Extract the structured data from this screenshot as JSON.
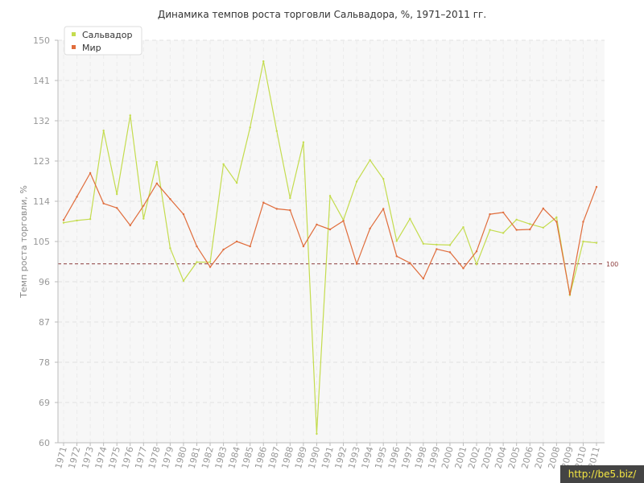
{
  "chart_data": {
    "type": "line",
    "title": "Динамика темпов роста торговли Сальвадора, %, 1971–2011 гг.",
    "xlabel": "",
    "ylabel": "Темп роста торговли, %",
    "ylim": [
      60,
      150
    ],
    "yticks": [
      60,
      69,
      78,
      87,
      96,
      105,
      114,
      123,
      132,
      141,
      150
    ],
    "grid": true,
    "legend_position": "top-left",
    "categories": [
      "1971",
      "1972",
      "1973",
      "1974",
      "1975",
      "1976",
      "1977",
      "1978",
      "1979",
      "1980",
      "1981",
      "1982",
      "1983",
      "1984",
      "1985",
      "1986",
      "1987",
      "1988",
      "1989",
      "1990",
      "1991",
      "1992",
      "1993",
      "1994",
      "1995",
      "1996",
      "1997",
      "1998",
      "1999",
      "2000",
      "2001",
      "2002",
      "2003",
      "2004",
      "2005",
      "2006",
      "2007",
      "2008",
      "2009",
      "2010",
      "2011"
    ],
    "series": [
      {
        "name": "Сальвадор",
        "color": "#c4dc4e",
        "values": [
          109.2,
          109.7,
          110.0,
          129.8,
          115.6,
          133.2,
          110.1,
          122.8,
          103.5,
          96.2,
          100.4,
          100.4,
          122.3,
          118.1,
          130.5,
          145.3,
          129.7,
          114.7,
          127.2,
          62.0,
          115.2,
          109.8,
          118.4,
          123.2,
          119.0,
          105.1,
          110.1,
          104.5,
          104.3,
          104.2,
          108.2,
          99.9,
          107.6,
          106.9,
          109.9,
          108.9,
          108.1,
          110.4,
          93.0,
          105.0,
          104.7
        ]
      },
      {
        "name": "Мир",
        "color": "#e06d3c",
        "values": [
          109.8,
          115.0,
          120.3,
          113.5,
          112.5,
          108.6,
          113.0,
          118.0,
          114.5,
          111.1,
          103.9,
          99.3,
          103.2,
          105.0,
          103.9,
          113.7,
          112.3,
          112.0,
          103.9,
          108.8,
          107.7,
          109.6,
          100.0,
          107.9,
          112.3,
          101.7,
          100.2,
          96.7,
          103.3,
          102.6,
          99.0,
          102.8,
          111.1,
          111.5,
          107.6,
          107.7,
          112.4,
          109.4,
          93.2,
          109.4,
          117.2
        ]
      }
    ],
    "reference_line": {
      "value": 100,
      "label": "100",
      "color": "#8b3a3a"
    }
  },
  "watermark": "http://be5.biz/"
}
